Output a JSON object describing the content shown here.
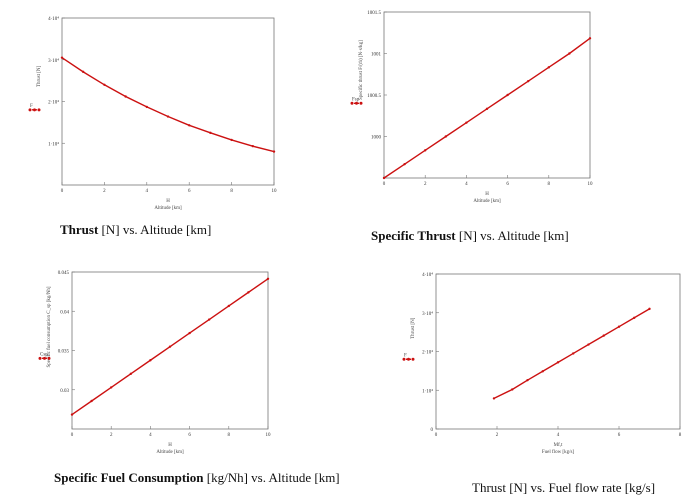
{
  "chart_data": [
    {
      "type": "line",
      "ylabel": "Thrust [N]",
      "xlabel": "Altitude [km]",
      "x_param_label": "H",
      "legend_label": "F",
      "x": [
        0,
        1,
        2,
        3,
        4,
        5,
        6,
        7,
        8,
        9,
        10
      ],
      "series": [
        {
          "values": [
            30500,
            27100,
            24000,
            21200,
            18700,
            16400,
            14300,
            12500,
            10800,
            9300,
            8000
          ]
        }
      ],
      "xlim": [
        0,
        10
      ],
      "ylim": [
        0,
        40000
      ],
      "x_ticks": [
        "0",
        "2",
        "4",
        "6",
        "8",
        "10"
      ],
      "y_ticks": [
        "1·10⁴",
        "2·10⁴",
        "3·10⁴",
        "4·10⁴"
      ],
      "grid": false,
      "color": "#cc1111",
      "caption_bold": "Thrust",
      "caption_rest": " [N] vs. Altitude [km]"
    },
    {
      "type": "line",
      "ylabel": "Specific thrust F/(ṁ) [N·s/kg]",
      "xlabel": "Altitude [km]",
      "x_param_label": "H",
      "legend_label": "Fsp",
      "x": [
        0,
        1,
        2,
        3,
        4,
        5,
        6,
        7,
        8,
        9,
        10
      ],
      "series": [
        {
          "values": [
            999.95,
            1000.05,
            1000.15,
            1000.25,
            1000.35,
            1000.45,
            1000.55,
            1000.65,
            1000.75,
            1000.85,
            1000.96
          ]
        }
      ],
      "xlim": [
        0,
        10
      ],
      "ylim": [
        999.95,
        1001.15
      ],
      "x_ticks": [
        "0",
        "2",
        "4",
        "6",
        "8",
        "10"
      ],
      "y_ticks": [
        "1000",
        "1000.5",
        "1001",
        "1001.5"
      ],
      "grid": false,
      "color": "#cc1111",
      "caption_bold": "Specific Thrust",
      "caption_rest": " [N] vs. Altitude [km]"
    },
    {
      "type": "line",
      "ylabel": "Specific fuel consumption C_sp [kg/Nh]",
      "xlabel": "Altitude [km]",
      "x_param_label": "H",
      "legend_label": "Csp",
      "x": [
        0,
        1,
        2,
        3,
        4,
        5,
        6,
        7,
        8,
        9,
        10
      ],
      "series": [
        {
          "values": [
            0.0292,
            0.0308,
            0.0324,
            0.034,
            0.0356,
            0.0372,
            0.0388,
            0.0404,
            0.042,
            0.0436,
            0.0452
          ]
        }
      ],
      "xlim": [
        0,
        10
      ],
      "ylim": [
        0.0275,
        0.046
      ],
      "x_ticks": [
        "0",
        "2",
        "4",
        "6",
        "8",
        "10"
      ],
      "y_ticks": [
        "0.03",
        "0.035",
        "0.04",
        "0.045"
      ],
      "grid": false,
      "color": "#cc1111",
      "caption_bold": "Specific Fuel Consumption",
      "caption_rest": " [kg/Nh] vs. Altitude [km]"
    },
    {
      "type": "line",
      "ylabel": "Thrust [N]",
      "xlabel": "Fuel flow [kg/s]",
      "x_param_label": "Mf,t",
      "legend_label": "F",
      "x": [
        1.9,
        2.5,
        3.0,
        3.5,
        4.0,
        4.5,
        5.0,
        5.5,
        6.0,
        6.5,
        7.0
      ],
      "series": [
        {
          "values": [
            7900,
            10200,
            12600,
            14900,
            17200,
            19500,
            21800,
            24100,
            26400,
            28700,
            31000
          ]
        }
      ],
      "xlim": [
        0,
        8
      ],
      "ylim": [
        0,
        40000
      ],
      "x_ticks": [
        "0",
        "2",
        "4",
        "6",
        "8"
      ],
      "y_ticks": [
        "0",
        "1·10⁴",
        "2·10⁴",
        "3·10⁴",
        "4·10⁴"
      ],
      "grid": false,
      "color": "#cc1111",
      "caption_bold": "",
      "caption_rest": "Thrust [N] vs. Fuel flow rate [kg/s]"
    }
  ]
}
